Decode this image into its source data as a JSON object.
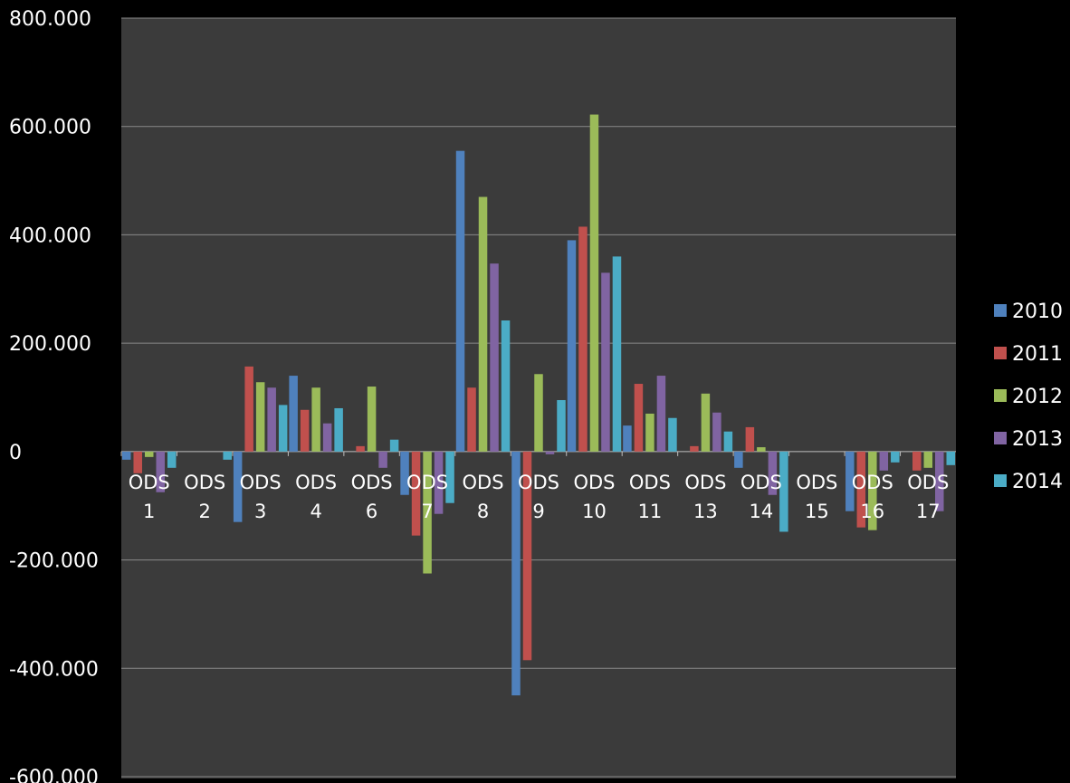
{
  "chart_data": {
    "type": "bar",
    "title": "",
    "xlabel": "",
    "ylabel": "",
    "ylim": [
      -600000,
      800000
    ],
    "yticks": [
      -600000,
      -400000,
      -200000,
      0,
      200000,
      400000,
      600000,
      800000
    ],
    "ytick_labels": [
      "-600.000",
      "-400.000",
      "-200.000",
      "0",
      "200.000",
      "400.000",
      "600.000",
      "800.000"
    ],
    "grid": true,
    "legend_position": "right",
    "categories": [
      [
        "ODS",
        "1"
      ],
      [
        "ODS",
        "2"
      ],
      [
        "ODS",
        "3"
      ],
      [
        "ODS",
        "4"
      ],
      [
        "ODS",
        "6"
      ],
      [
        "ODS",
        "7"
      ],
      [
        "ODS",
        "8"
      ],
      [
        "ODS",
        "9"
      ],
      [
        "ODS",
        "10"
      ],
      [
        "ODS",
        "11"
      ],
      [
        "ODS",
        "13"
      ],
      [
        "ODS",
        "14"
      ],
      [
        "ODS",
        "15"
      ],
      [
        "ODS",
        "16"
      ],
      [
        "ODS",
        "17"
      ]
    ],
    "series": [
      {
        "name": "2010",
        "color": "#4f81bd",
        "values": [
          -15000,
          0,
          -130000,
          140000,
          0,
          -80000,
          555000,
          -450000,
          390000,
          48000,
          0,
          -30000,
          0,
          -110000,
          0
        ]
      },
      {
        "name": "2011",
        "color": "#c0504d",
        "values": [
          -40000,
          0,
          157000,
          77000,
          10000,
          -155000,
          118000,
          -385000,
          415000,
          125000,
          10000,
          45000,
          0,
          -140000,
          -35000
        ]
      },
      {
        "name": "2012",
        "color": "#9bbb59",
        "values": [
          -10000,
          0,
          128000,
          118000,
          120000,
          -225000,
          470000,
          143000,
          622000,
          70000,
          107000,
          8000,
          0,
          -145000,
          -30000
        ]
      },
      {
        "name": "2013",
        "color": "#8064a2",
        "values": [
          -75000,
          0,
          118000,
          52000,
          -30000,
          -115000,
          347000,
          -5000,
          330000,
          140000,
          72000,
          -80000,
          0,
          -35000,
          -110000
        ]
      },
      {
        "name": "2014",
        "color": "#4bacc6",
        "values": [
          -30000,
          -15000,
          86000,
          80000,
          22000,
          -95000,
          242000,
          95000,
          360000,
          62000,
          37000,
          -148000,
          0,
          -20000,
          -25000
        ]
      }
    ]
  }
}
